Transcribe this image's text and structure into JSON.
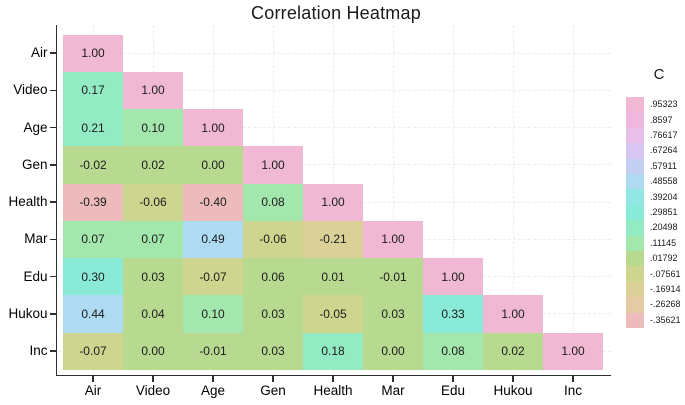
{
  "title": "Correlation Heatmap",
  "chart_data": {
    "type": "heatmap",
    "title": "Correlation Heatmap",
    "subtitle": "",
    "categories": [
      "Air",
      "Video",
      "Age",
      "Gen",
      "Health",
      "Mar",
      "Edu",
      "Hukou",
      "Inc"
    ],
    "matrix": [
      [
        "1.00"
      ],
      [
        "0.17",
        "1.00"
      ],
      [
        "0.21",
        "0.10",
        "1.00"
      ],
      [
        "-0.02",
        "0.02",
        "0.00",
        "1.00"
      ],
      [
        "-0.39",
        "-0.06",
        "-0.40",
        "0.08",
        "1.00"
      ],
      [
        "0.07",
        "0.07",
        "0.49",
        "-0.06",
        "-0.21",
        "1.00"
      ],
      [
        "0.30",
        "0.03",
        "-0.07",
        "0.06",
        "0.01",
        "-0.01",
        "1.00"
      ],
      [
        "0.44",
        "0.04",
        "0.10",
        "0.03",
        "-0.05",
        "0.03",
        "0.33",
        "1.00"
      ],
      [
        "-0.07",
        "0.00",
        "-0.01",
        "0.03",
        "0.18",
        "0.00",
        "0.08",
        "0.02",
        "1.00"
      ]
    ],
    "triangle": "lower",
    "grid": true,
    "legend": {
      "title": "C",
      "position": "right",
      "labels": [
        ".95323",
        ".8597",
        ".76617",
        ".67264",
        ".57911",
        ".48558",
        ".39204",
        ".29851",
        ".20498",
        ".11145",
        ".01792",
        "-.07561",
        "-.16914",
        "-.26268",
        "-.35621"
      ],
      "colors": [
        "#f0b8d2",
        "#efb7dd",
        "#e7bfe9",
        "#d7c6f1",
        "#c2cff3",
        "#aedaf2",
        "#93e7e3",
        "#89ebd7",
        "#92ebc3",
        "#a3e7ad",
        "#b8da90",
        "#ced58e",
        "#dbd098",
        "#e4caa5",
        "#edbbbc"
      ]
    },
    "colors": {
      "background": "#ffffff",
      "axis": "#2f2f2f",
      "gridline": "#ececf1",
      "cell_text": "#1c1c1c"
    }
  }
}
